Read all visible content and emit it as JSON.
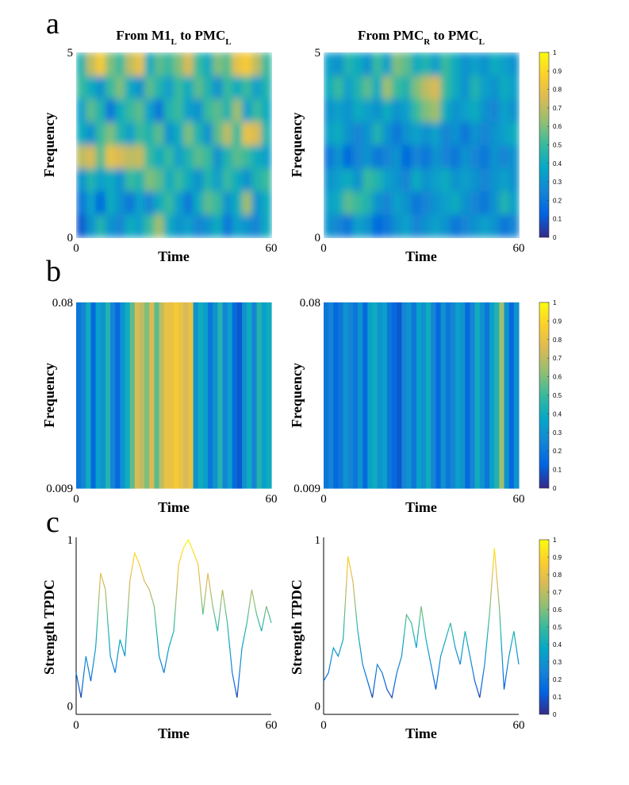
{
  "panel_labels": [
    "a",
    "b",
    "c"
  ],
  "colormap": [
    "#352a87",
    "#0363e1",
    "#1485d4",
    "#06a7c6",
    "#38b99e",
    "#92bf73",
    "#d9ba56",
    "#fcce2e",
    "#f9fb0e"
  ],
  "chart_data": [
    {
      "type": "heatmap",
      "title_parts": [
        {
          "text": "From M1"
        },
        {
          "text": "L",
          "sub": true
        },
        {
          "text": " to PMC"
        },
        {
          "text": "L",
          "sub": true
        }
      ],
      "xlabel": "Time",
      "ylabel": "Frequency",
      "xlim": [
        0,
        60
      ],
      "xticks": [
        0,
        60
      ],
      "ylim": [
        0,
        5
      ],
      "yticks": [
        0,
        5
      ],
      "smooth": true,
      "z": [
        [
          0.1,
          0.3,
          0.45,
          0.3,
          0.25,
          0.4,
          0.35,
          0.5,
          0.65,
          0.4,
          0.3,
          0.35,
          0.25,
          0.3,
          0.4,
          0.2,
          0.35,
          0.3,
          0.25,
          0.4
        ],
        [
          0.2,
          0.35,
          0.15,
          0.4,
          0.3,
          0.2,
          0.35,
          0.25,
          0.4,
          0.5,
          0.35,
          0.2,
          0.4,
          0.55,
          0.5,
          0.3,
          0.4,
          0.65,
          0.3,
          0.4
        ],
        [
          0.3,
          0.45,
          0.35,
          0.4,
          0.3,
          0.5,
          0.45,
          0.6,
          0.55,
          0.4,
          0.5,
          0.4,
          0.3,
          0.45,
          0.35,
          0.5,
          0.4,
          0.3,
          0.45,
          0.5
        ],
        [
          0.7,
          0.75,
          0.55,
          0.8,
          0.75,
          0.7,
          0.72,
          0.5,
          0.4,
          0.5,
          0.35,
          0.45,
          0.55,
          0.5,
          0.3,
          0.45,
          0.55,
          0.5,
          0.4,
          0.35
        ],
        [
          0.4,
          0.3,
          0.5,
          0.6,
          0.45,
          0.35,
          0.5,
          0.45,
          0.55,
          0.3,
          0.4,
          0.6,
          0.45,
          0.3,
          0.55,
          0.7,
          0.5,
          0.8,
          0.75,
          0.45
        ],
        [
          0.35,
          0.55,
          0.45,
          0.2,
          0.4,
          0.5,
          0.55,
          0.35,
          0.2,
          0.45,
          0.5,
          0.35,
          0.3,
          0.5,
          0.55,
          0.45,
          0.65,
          0.35,
          0.5,
          0.4
        ],
        [
          0.5,
          0.4,
          0.3,
          0.5,
          0.6,
          0.4,
          0.3,
          0.55,
          0.45,
          0.35,
          0.5,
          0.4,
          0.55,
          0.45,
          0.3,
          0.5,
          0.4,
          0.5,
          0.35,
          0.45
        ],
        [
          0.45,
          0.7,
          0.85,
          0.6,
          0.5,
          0.7,
          0.8,
          0.4,
          0.55,
          0.5,
          0.6,
          0.75,
          0.5,
          0.4,
          0.6,
          0.55,
          0.8,
          0.85,
          0.7,
          0.5
        ]
      ]
    },
    {
      "type": "heatmap",
      "title_parts": [
        {
          "text": "From PMC"
        },
        {
          "text": "R",
          "sub": true
        },
        {
          "text": " to PMC"
        },
        {
          "text": "L",
          "sub": true
        }
      ],
      "xlabel": "Time",
      "ylabel": "Frequency",
      "xlim": [
        0,
        60
      ],
      "xticks": [
        0,
        60
      ],
      "ylim": [
        0,
        5
      ],
      "yticks": [
        0,
        5
      ],
      "smooth": true,
      "z": [
        [
          0.3,
          0.25,
          0.2,
          0.35,
          0.3,
          0.15,
          0.2,
          0.3,
          0.35,
          0.25,
          0.3,
          0.35,
          0.3,
          0.2,
          0.25,
          0.3,
          0.35,
          0.3,
          0.2,
          0.25
        ],
        [
          0.35,
          0.4,
          0.55,
          0.5,
          0.45,
          0.3,
          0.25,
          0.35,
          0.3,
          0.2,
          0.25,
          0.3,
          0.35,
          0.4,
          0.3,
          0.25,
          0.2,
          0.3,
          0.45,
          0.35
        ],
        [
          0.3,
          0.35,
          0.4,
          0.3,
          0.5,
          0.45,
          0.35,
          0.3,
          0.25,
          0.4,
          0.3,
          0.35,
          0.4,
          0.3,
          0.35,
          0.3,
          0.25,
          0.3,
          0.35,
          0.3
        ],
        [
          0.2,
          0.3,
          0.15,
          0.25,
          0.3,
          0.2,
          0.25,
          0.3,
          0.15,
          0.25,
          0.2,
          0.3,
          0.25,
          0.2,
          0.3,
          0.25,
          0.2,
          0.3,
          0.25,
          0.3
        ],
        [
          0.35,
          0.4,
          0.3,
          0.25,
          0.3,
          0.45,
          0.3,
          0.2,
          0.3,
          0.35,
          0.3,
          0.35,
          0.25,
          0.3,
          0.2,
          0.3,
          0.25,
          0.3,
          0.35,
          0.4
        ],
        [
          0.3,
          0.35,
          0.3,
          0.4,
          0.35,
          0.3,
          0.4,
          0.3,
          0.35,
          0.5,
          0.6,
          0.65,
          0.4,
          0.3,
          0.35,
          0.4,
          0.3,
          0.25,
          0.35,
          0.3
        ],
        [
          0.4,
          0.5,
          0.35,
          0.45,
          0.55,
          0.4,
          0.65,
          0.5,
          0.45,
          0.6,
          0.7,
          0.75,
          0.5,
          0.4,
          0.3,
          0.45,
          0.35,
          0.3,
          0.4,
          0.35
        ],
        [
          0.35,
          0.3,
          0.45,
          0.4,
          0.3,
          0.5,
          0.35,
          0.6,
          0.55,
          0.4,
          0.45,
          0.35,
          0.5,
          0.4,
          0.3,
          0.35,
          0.3,
          0.4,
          0.35,
          0.3
        ]
      ],
      "colorbar": {
        "clim": [
          0,
          1
        ],
        "ticks": [
          0,
          0.1,
          0.2,
          0.3,
          0.4,
          0.5,
          0.6,
          0.7,
          0.8,
          0.9,
          1
        ]
      }
    },
    {
      "type": "heatmap",
      "xlabel": "Time",
      "ylabel": "Frequency",
      "xlim": [
        0,
        60
      ],
      "xticks": [
        0,
        60
      ],
      "ylim": [
        0.009,
        0.08
      ],
      "yticks": [
        0.009,
        0.08
      ],
      "smooth": false,
      "z": [
        [
          0.2,
          0.25,
          0.4,
          0.15,
          0.35,
          0.3,
          0.45,
          0.25,
          0.15,
          0.3,
          0.4,
          0.55,
          0.75,
          0.7,
          0.6,
          0.75,
          0.55,
          0.7,
          0.8,
          0.8,
          0.85,
          0.8,
          0.75,
          0.8,
          0.3,
          0.4,
          0.35,
          0.2,
          0.3,
          0.45,
          0.25,
          0.35,
          0.15,
          0.1,
          0.3,
          0.4,
          0.25,
          0.45,
          0.35,
          0.4
        ]
      ]
    },
    {
      "type": "heatmap",
      "xlabel": "Time",
      "ylabel": "Frequency",
      "xlim": [
        0,
        60
      ],
      "xticks": [
        0,
        60
      ],
      "ylim": [
        0.009,
        0.08
      ],
      "yticks": [
        0.009,
        0.08
      ],
      "smooth": false,
      "z": [
        [
          0.2,
          0.25,
          0.15,
          0.2,
          0.3,
          0.25,
          0.2,
          0.3,
          0.15,
          0.35,
          0.4,
          0.3,
          0.35,
          0.2,
          0.15,
          0.1,
          0.25,
          0.3,
          0.2,
          0.35,
          0.3,
          0.4,
          0.25,
          0.15,
          0.3,
          0.2,
          0.25,
          0.35,
          0.3,
          0.15,
          0.25,
          0.4,
          0.3,
          0.2,
          0.35,
          0.45,
          0.65,
          0.3,
          0.15,
          0.3
        ]
      ],
      "colorbar": {
        "clim": [
          0,
          1
        ],
        "ticks": [
          0,
          0.1,
          0.2,
          0.3,
          0.4,
          0.5,
          0.6,
          0.7,
          0.8,
          0.9,
          1
        ]
      }
    },
    {
      "type": "line",
      "xlabel": "Time",
      "ylabel": "Strength TPDC",
      "xlim": [
        0,
        60
      ],
      "xticks": [
        0,
        60
      ],
      "ylim": [
        -0.05,
        1
      ],
      "yticks": [
        0,
        1
      ],
      "x": [
        0,
        1.5,
        3,
        4.5,
        6,
        7.5,
        9,
        10.5,
        12,
        13.5,
        15,
        16.5,
        18,
        19.5,
        21,
        22.5,
        24,
        25.5,
        27,
        28.5,
        30,
        31.5,
        33,
        34.5,
        36,
        37.5,
        39,
        40.5,
        42,
        43.5,
        45,
        46.5,
        48,
        49.5,
        51,
        52.5,
        54,
        55.5,
        57,
        58.5,
        60
      ],
      "values": [
        0.2,
        0.05,
        0.3,
        0.15,
        0.35,
        0.8,
        0.7,
        0.3,
        0.2,
        0.4,
        0.3,
        0.75,
        0.92,
        0.85,
        0.75,
        0.7,
        0.6,
        0.3,
        0.2,
        0.35,
        0.45,
        0.85,
        0.95,
        1.0,
        0.93,
        0.85,
        0.55,
        0.8,
        0.6,
        0.45,
        0.7,
        0.5,
        0.2,
        0.05,
        0.35,
        0.5,
        0.7,
        0.55,
        0.45,
        0.6,
        0.5
      ]
    },
    {
      "type": "line",
      "xlabel": "Time",
      "ylabel": "Strength TPDC",
      "xlim": [
        0,
        60
      ],
      "xticks": [
        0,
        60
      ],
      "ylim": [
        -0.05,
        1
      ],
      "yticks": [
        0,
        1
      ],
      "x": [
        0,
        1.5,
        3,
        4.5,
        6,
        7.5,
        9,
        10.5,
        12,
        13.5,
        15,
        16.5,
        18,
        19.5,
        21,
        22.5,
        24,
        25.5,
        27,
        28.5,
        30,
        31.5,
        33,
        34.5,
        36,
        37.5,
        39,
        40.5,
        42,
        43.5,
        45,
        46.5,
        48,
        49.5,
        51,
        52.5,
        54,
        55.5,
        57,
        58.5,
        60
      ],
      "values": [
        0.15,
        0.2,
        0.35,
        0.3,
        0.4,
        0.9,
        0.75,
        0.45,
        0.25,
        0.15,
        0.05,
        0.25,
        0.2,
        0.1,
        0.05,
        0.2,
        0.3,
        0.55,
        0.5,
        0.35,
        0.6,
        0.4,
        0.25,
        0.1,
        0.3,
        0.4,
        0.5,
        0.35,
        0.25,
        0.45,
        0.3,
        0.15,
        0.05,
        0.25,
        0.55,
        0.95,
        0.6,
        0.1,
        0.3,
        0.45,
        0.25
      ],
      "colorbar": {
        "clim": [
          0,
          1
        ],
        "ticks": [
          0,
          0.1,
          0.2,
          0.3,
          0.4,
          0.5,
          0.6,
          0.7,
          0.8,
          0.9,
          1
        ]
      }
    }
  ]
}
